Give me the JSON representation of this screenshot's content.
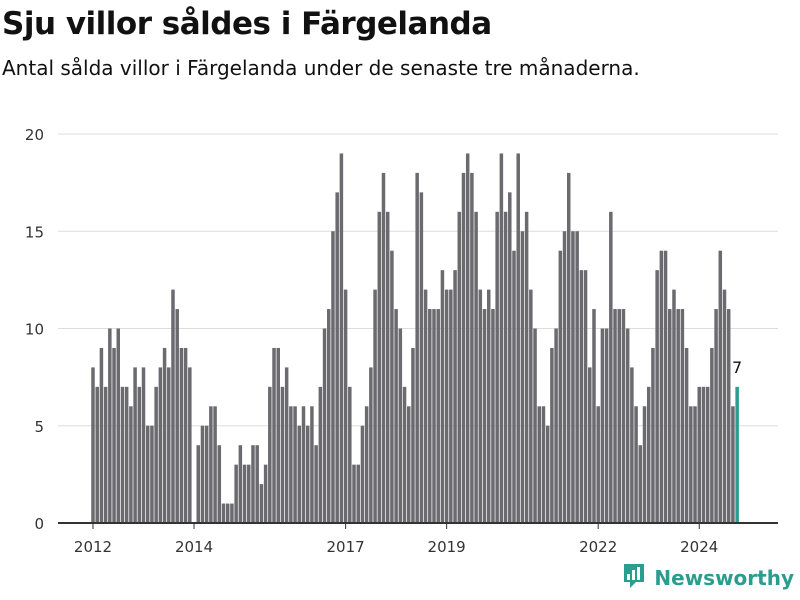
{
  "header": {
    "title": "Sju villor såldes i Färgelanda",
    "subtitle": "Antal sålda villor i Färgelanda under de senaste tre månaderna."
  },
  "brand": {
    "name": "Newsworthy"
  },
  "colors": {
    "bar": "#6b6a6f",
    "highlight": "#2a9d8f",
    "grid": "#dddddd",
    "axis": "#333333"
  },
  "chart_data": {
    "type": "bar",
    "ylim": [
      0,
      20
    ],
    "yticks": [
      0,
      5,
      10,
      15,
      20
    ],
    "xticks": [
      {
        "label": "2012",
        "index": 0
      },
      {
        "label": "2014",
        "index": 24
      },
      {
        "label": "2017",
        "index": 60
      },
      {
        "label": "2019",
        "index": 84
      },
      {
        "label": "2022",
        "index": 120
      },
      {
        "label": "2024",
        "index": 144
      }
    ],
    "values": [
      8,
      7,
      9,
      7,
      10,
      9,
      10,
      7,
      7,
      6,
      8,
      7,
      8,
      5,
      5,
      7,
      8,
      9,
      8,
      12,
      11,
      9,
      9,
      8,
      0,
      4,
      5,
      5,
      6,
      6,
      4,
      1,
      1,
      1,
      3,
      4,
      3,
      3,
      4,
      4,
      2,
      3,
      7,
      9,
      9,
      7,
      8,
      6,
      6,
      5,
      6,
      5,
      6,
      4,
      7,
      10,
      11,
      15,
      17,
      19,
      12,
      7,
      3,
      3,
      5,
      6,
      8,
      12,
      16,
      18,
      16,
      14,
      11,
      10,
      7,
      6,
      9,
      18,
      17,
      12,
      11,
      11,
      11,
      13,
      12,
      12,
      13,
      16,
      18,
      19,
      18,
      16,
      12,
      11,
      12,
      11,
      16,
      19,
      16,
      17,
      14,
      19,
      15,
      16,
      12,
      10,
      6,
      6,
      5,
      9,
      10,
      14,
      15,
      18,
      15,
      15,
      13,
      13,
      8,
      11,
      6,
      10,
      10,
      16,
      11,
      11,
      11,
      10,
      8,
      6,
      4,
      6,
      7,
      9,
      13,
      14,
      14,
      11,
      12,
      11,
      11,
      9,
      6,
      6,
      7,
      7,
      7,
      9,
      11,
      14,
      12,
      11,
      6,
      7
    ],
    "highlight_index": 153,
    "highlight_label": "7"
  }
}
